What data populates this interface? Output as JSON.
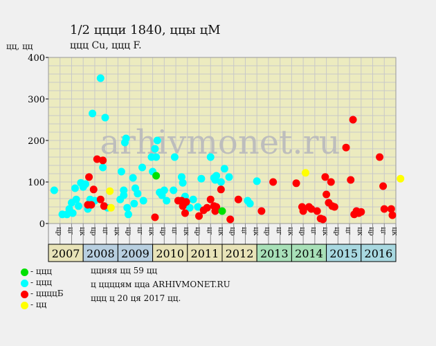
{
  "chart_data": {
    "type": "scatter",
    "title": "1/2 ццци 1840, ццы цМ",
    "subtitle": "ццц Cu, ццц F.",
    "ylabel": "цц, цц",
    "watermark": "arhivmonet.ru",
    "ylim": [
      0,
      400
    ],
    "yticks": [
      0,
      100,
      200,
      300,
      400
    ],
    "grid": true,
    "x_slot_labels": [
      "цр",
      "цг",
      "цк",
      "цр",
      "цг",
      "цк",
      "цр",
      "цг",
      "цк",
      "цр",
      "цг",
      "цк",
      "цр",
      "цг",
      "цк",
      "цр",
      "цг",
      "цк",
      "цр",
      "цг",
      "цк",
      "цр",
      "цг",
      "цк",
      "цр",
      "цг",
      "цк",
      "цр",
      "цг",
      "цк"
    ],
    "years": [
      {
        "label": "2007",
        "color": "#e8e3b8"
      },
      {
        "label": "2008",
        "color": "#b8cfe0"
      },
      {
        "label": "2009",
        "color": "#b8cfe0"
      },
      {
        "label": "2010",
        "color": "#e8e3b8"
      },
      {
        "label": "2011",
        "color": "#e8e3b8"
      },
      {
        "label": "2012",
        "color": "#e8e3b8"
      },
      {
        "label": "2013",
        "color": "#a8e0b8"
      },
      {
        "label": "2014",
        "color": "#a8e0b8"
      },
      {
        "label": "2015",
        "color": "#a8d8e0"
      },
      {
        "label": "2016",
        "color": "#a8d8e0"
      }
    ],
    "series": [
      {
        "color": "#00ffff",
        "points": [
          [
            0.0,
            80
          ],
          [
            0.7,
            22
          ],
          [
            1.1,
            22
          ],
          [
            1.3,
            35
          ],
          [
            1.5,
            50
          ],
          [
            1.6,
            25
          ],
          [
            1.8,
            85
          ],
          [
            1.9,
            58
          ],
          [
            2.1,
            42
          ],
          [
            2.3,
            98
          ],
          [
            2.5,
            88
          ],
          [
            2.7,
            95
          ],
          [
            2.9,
            35
          ],
          [
            3.1,
            58
          ],
          [
            3.3,
            265
          ],
          [
            3.5,
            55
          ],
          [
            4.0,
            350
          ],
          [
            4.2,
            135
          ],
          [
            4.4,
            255
          ],
          [
            4.6,
            38
          ],
          [
            5.7,
            58
          ],
          [
            5.8,
            125
          ],
          [
            6.0,
            80
          ],
          [
            6.0,
            68
          ],
          [
            6.1,
            195
          ],
          [
            6.2,
            205
          ],
          [
            6.3,
            38
          ],
          [
            6.4,
            22
          ],
          [
            6.8,
            110
          ],
          [
            6.9,
            48
          ],
          [
            7.0,
            85
          ],
          [
            7.2,
            72
          ],
          [
            7.6,
            135
          ],
          [
            7.7,
            55
          ],
          [
            8.4,
            160
          ],
          [
            8.5,
            125
          ],
          [
            8.7,
            180
          ],
          [
            8.8,
            160
          ],
          [
            8.9,
            200
          ],
          [
            9.1,
            75
          ],
          [
            9.3,
            68
          ],
          [
            9.5,
            80
          ],
          [
            9.7,
            55
          ],
          [
            10.3,
            80
          ],
          [
            10.4,
            160
          ],
          [
            11.0,
            112
          ],
          [
            11.1,
            98
          ],
          [
            11.3,
            65
          ],
          [
            11.7,
            38
          ],
          [
            12.0,
            58
          ],
          [
            12.4,
            40
          ],
          [
            12.7,
            108
          ],
          [
            13.5,
            160
          ],
          [
            13.8,
            110
          ],
          [
            13.9,
            105
          ],
          [
            14.0,
            115
          ],
          [
            14.4,
            100
          ],
          [
            14.7,
            132
          ],
          [
            15.1,
            112
          ],
          [
            16.7,
            55
          ],
          [
            16.9,
            48
          ],
          [
            17.5,
            102
          ]
        ]
      },
      {
        "color": "#ff0000",
        "points": [
          [
            2.9,
            45
          ],
          [
            3.0,
            112
          ],
          [
            3.2,
            45
          ],
          [
            3.4,
            82
          ],
          [
            3.7,
            155
          ],
          [
            4.0,
            58
          ],
          [
            4.2,
            152
          ],
          [
            4.3,
            42
          ],
          [
            8.7,
            15
          ],
          [
            10.7,
            55
          ],
          [
            11.0,
            55
          ],
          [
            11.1,
            42
          ],
          [
            11.2,
            48
          ],
          [
            11.3,
            25
          ],
          [
            11.4,
            52
          ],
          [
            12.5,
            18
          ],
          [
            12.9,
            32
          ],
          [
            13.2,
            38
          ],
          [
            13.5,
            58
          ],
          [
            13.8,
            42
          ],
          [
            13.9,
            30
          ],
          [
            14.0,
            40
          ],
          [
            14.4,
            82
          ],
          [
            15.2,
            10
          ],
          [
            15.9,
            58
          ],
          [
            17.9,
            30
          ],
          [
            18.9,
            100
          ],
          [
            20.9,
            97
          ],
          [
            21.4,
            40
          ],
          [
            21.5,
            30
          ],
          [
            22.0,
            40
          ],
          [
            22.2,
            35
          ],
          [
            22.7,
            30
          ],
          [
            23.0,
            12
          ],
          [
            23.2,
            10
          ],
          [
            23.4,
            112
          ],
          [
            23.5,
            70
          ],
          [
            23.7,
            50
          ],
          [
            23.9,
            100
          ],
          [
            24.0,
            42
          ],
          [
            24.2,
            40
          ],
          [
            25.2,
            183
          ],
          [
            25.6,
            105
          ],
          [
            25.8,
            250
          ],
          [
            25.9,
            22
          ],
          [
            26.1,
            30
          ],
          [
            26.3,
            25
          ],
          [
            26.5,
            28
          ],
          [
            28.1,
            160
          ],
          [
            28.4,
            90
          ],
          [
            28.5,
            35
          ],
          [
            29.1,
            35
          ],
          [
            29.2,
            20
          ]
        ]
      },
      {
        "color": "#00e000",
        "points": [
          [
            8.8,
            115
          ],
          [
            14.5,
            30
          ]
        ]
      },
      {
        "color": "#ffff00",
        "points": [
          [
            4.8,
            78
          ],
          [
            4.9,
            38
          ],
          [
            21.7,
            122
          ],
          [
            29.9,
            108
          ]
        ]
      }
    ]
  },
  "legend": [
    {
      "color": "#00e000",
      "label": "- ццц"
    },
    {
      "color": "#00ffff",
      "label": "- ццц"
    },
    {
      "color": "#ff0000",
      "label": "- ццццБ"
    },
    {
      "color": "#ffff00",
      "label": "- цц"
    }
  ],
  "notes": [
    "ццняя цц 59 цц",
    "ц ццццям цца ARHIVMONET.RU",
    "ццц ц 20 ця 2017 цц."
  ]
}
